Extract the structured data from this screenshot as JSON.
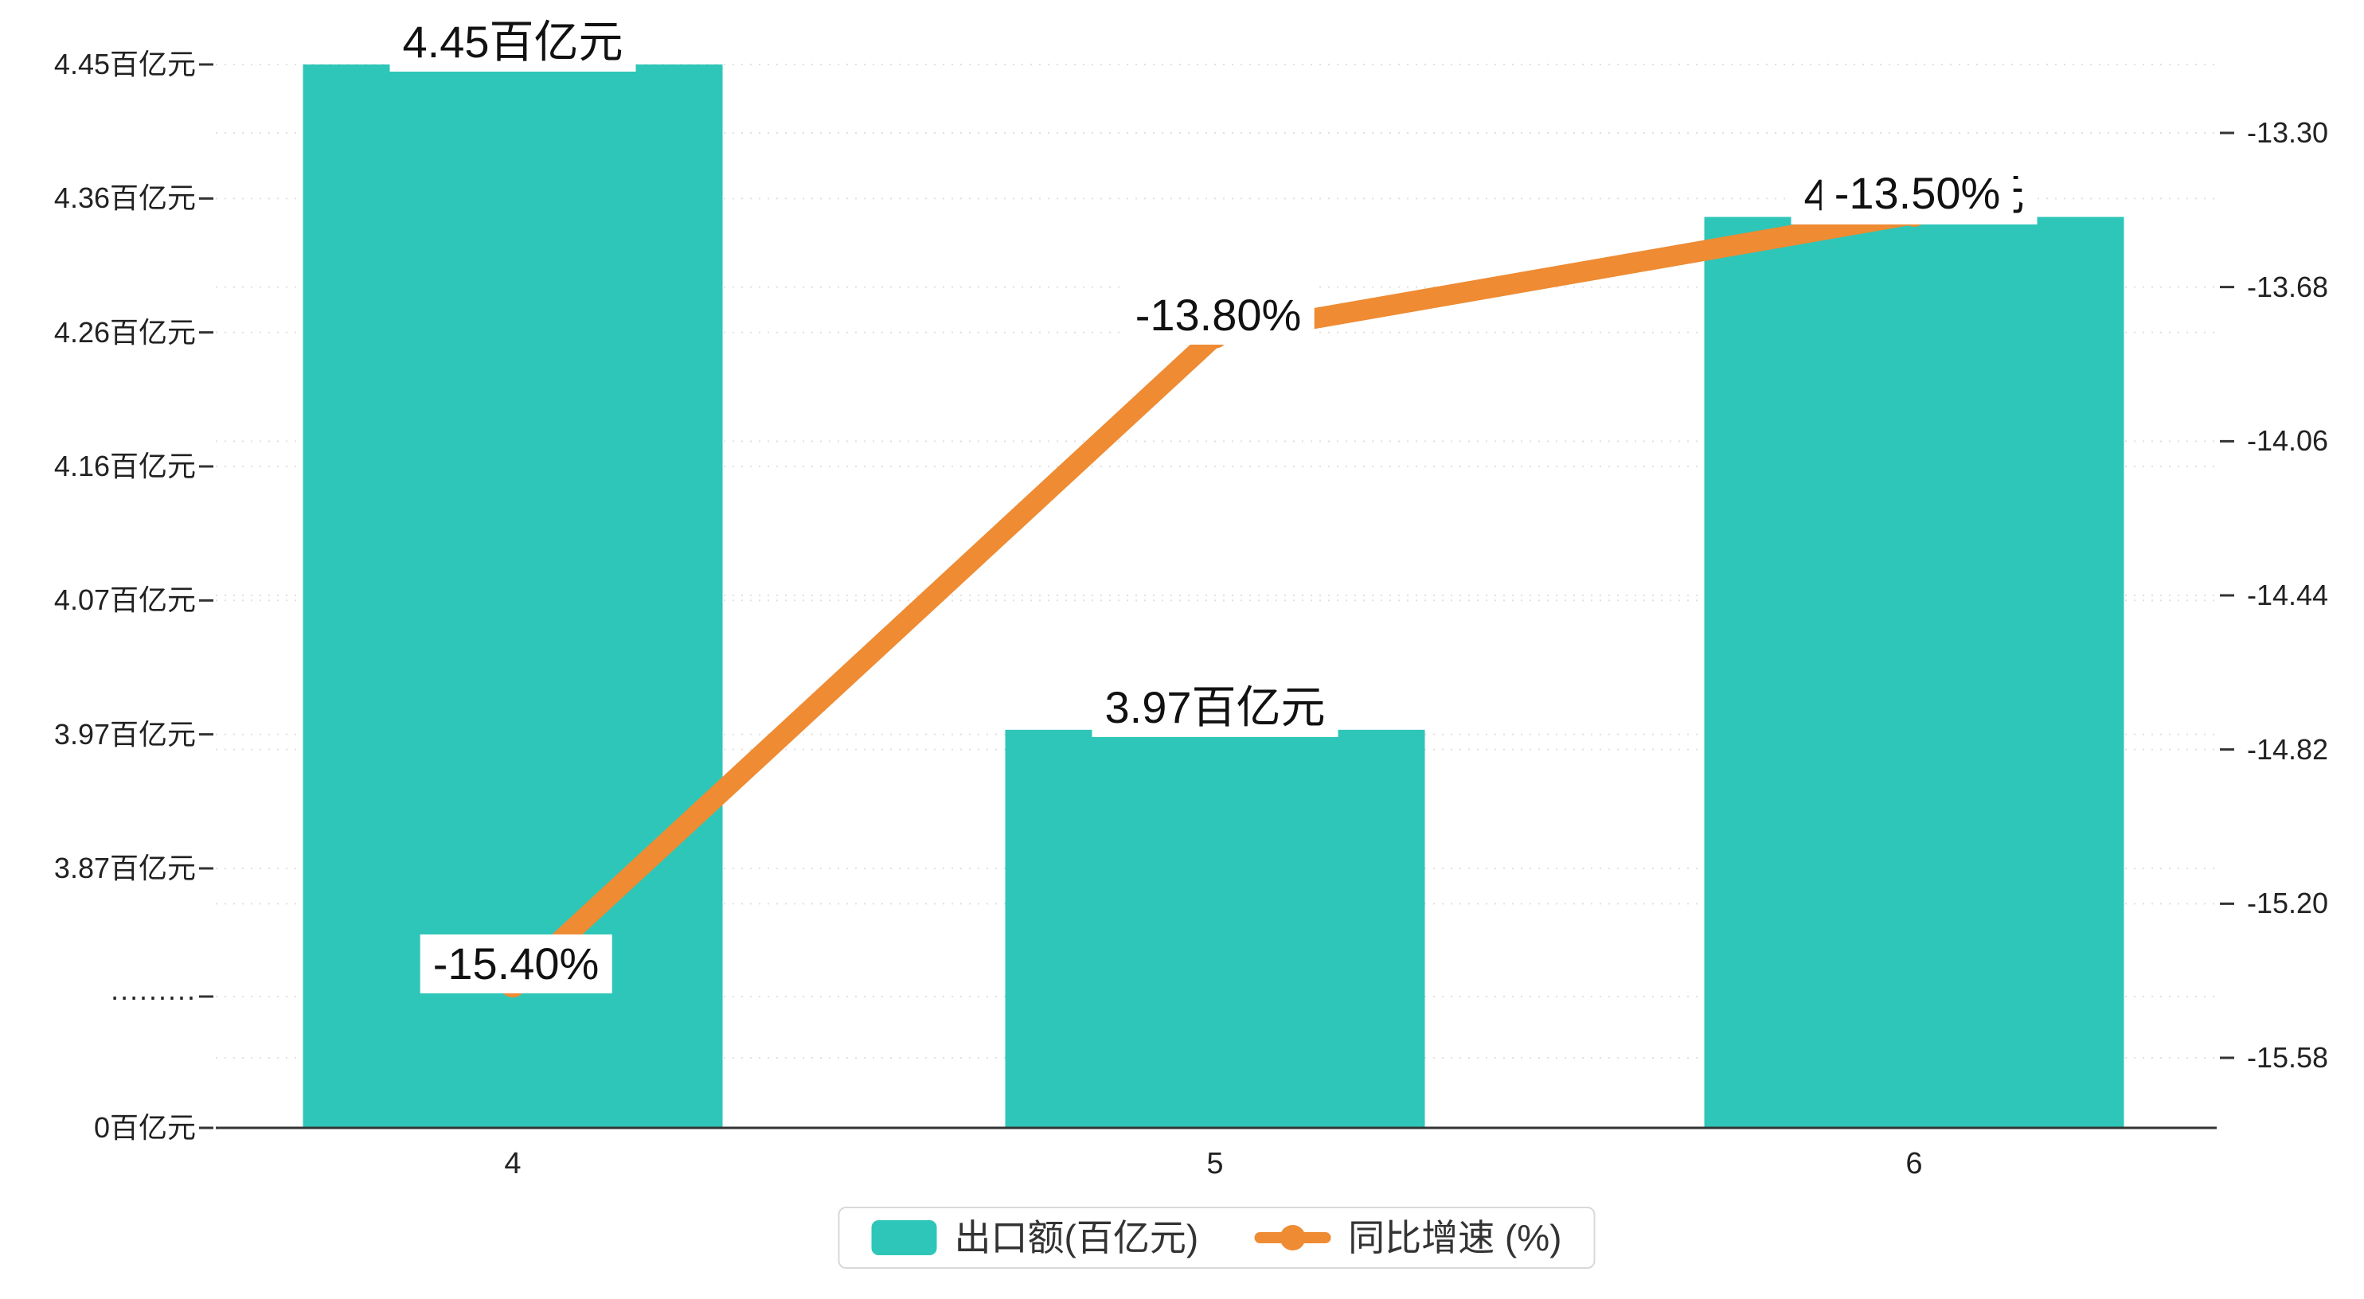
{
  "chart_data": {
    "type": "bar+line combo",
    "categories": [
      "4",
      "5",
      "6"
    ],
    "series": [
      {
        "name": "出口额(百亿元)",
        "type": "bar",
        "color": "#2ec6b8",
        "values": [
          4.45,
          3.97,
          4.34
        ],
        "value_labels": [
          "4.45百亿元",
          "3.97百亿元",
          "4.34百亿元"
        ]
      },
      {
        "name": "同比增速 (%)",
        "type": "line",
        "color": "#ee8b33",
        "values": [
          -15.4,
          -13.8,
          -13.5
        ],
        "value_labels": [
          "-15.40%",
          "-13.80%",
          "-13.50%"
        ]
      }
    ],
    "left_axis": {
      "tick_labels": [
        "4.45百亿元",
        "4.36百亿元",
        "4.26百亿元",
        "4.16百亿元",
        "4.07百亿元",
        "3.97百亿元",
        "3.87百亿元",
        "·········",
        "0百亿元"
      ],
      "tick_values": [
        4.45,
        4.36,
        4.26,
        4.16,
        4.07,
        3.97,
        3.87,
        null,
        0
      ],
      "axis_break": true
    },
    "right_axis": {
      "tick_labels": [
        "-13.30",
        "-13.68",
        "-14.06",
        "-14.44",
        "-14.82",
        "-15.20",
        "-15.58"
      ],
      "tick_values": [
        -13.3,
        -13.68,
        -14.06,
        -14.44,
        -14.82,
        -15.2,
        -15.58
      ]
    },
    "legend": {
      "position": "bottom-center",
      "items": [
        {
          "label": "出口额(百亿元)",
          "marker": "bar-swatch"
        },
        {
          "label": "同比增速 (%)",
          "marker": "line-dot"
        }
      ]
    },
    "grid": "dashed horizontal",
    "colors": {
      "bar": "#2ec6b8",
      "line": "#ee8b33",
      "axis": "#333333",
      "text": "#222222",
      "background": "#ffffff"
    }
  }
}
